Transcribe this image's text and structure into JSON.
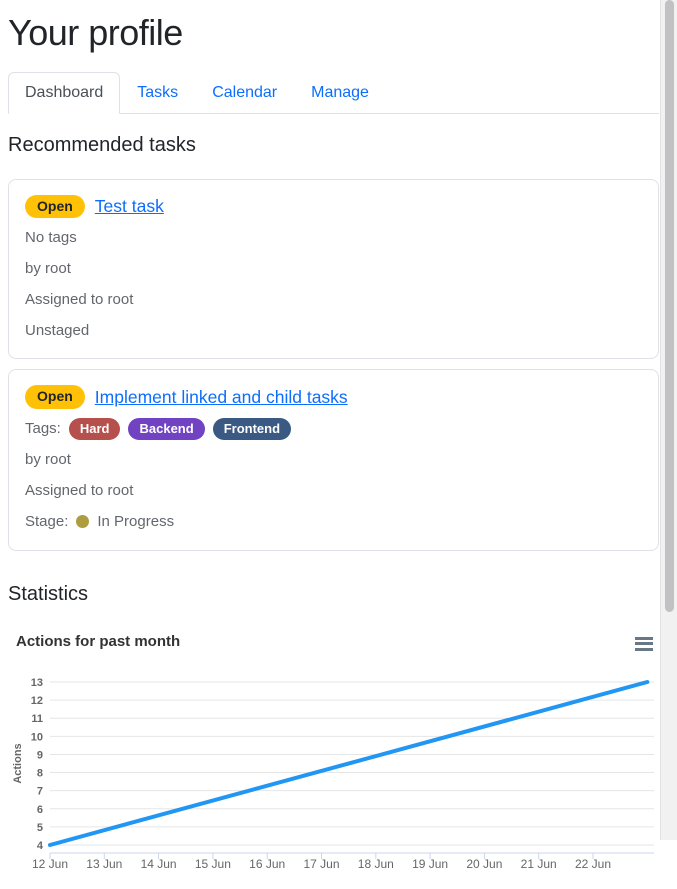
{
  "page": {
    "title": "Your profile"
  },
  "tabs": [
    {
      "label": "Dashboard",
      "active": true
    },
    {
      "label": "Tasks",
      "active": false
    },
    {
      "label": "Calendar",
      "active": false
    },
    {
      "label": "Manage",
      "active": false
    }
  ],
  "recommended": {
    "heading": "Recommended tasks",
    "tasks": [
      {
        "status": "Open",
        "title": "Test task",
        "tags_text": "No tags",
        "author": "by root",
        "assigned": "Assigned to root",
        "stage_text": "Unstaged"
      },
      {
        "status": "Open",
        "title": "Implement linked and child tasks",
        "tags_label": "Tags:",
        "tags": [
          {
            "label": "Hard",
            "color": "#b5504c"
          },
          {
            "label": "Backend",
            "color": "#7142c2"
          },
          {
            "label": "Frontend",
            "color": "#3a5a84"
          }
        ],
        "author": "by root",
        "assigned": "Assigned to root",
        "stage_label": "Stage:",
        "stage_text": "In Progress",
        "stage_dot_color": "#ad9d3e"
      }
    ]
  },
  "statistics": {
    "heading": "Statistics"
  },
  "chart_data": {
    "type": "line",
    "title": "Actions for past month",
    "ylabel": "Actions",
    "xlabel": "",
    "x_tick_labels": [
      "12 Jun",
      "13 Jun",
      "14 Jun",
      "15 Jun",
      "16 Jun",
      "17 Jun",
      "18 Jun",
      "19 Jun",
      "20 Jun",
      "21 Jun",
      "22 Jun"
    ],
    "y_ticks": [
      4,
      5,
      6,
      7,
      8,
      9,
      10,
      11,
      12,
      13
    ],
    "ylim": [
      3.5,
      13
    ],
    "grid": true,
    "legend": "none",
    "series": [
      {
        "name": "Actions",
        "x": [
          "12 Jun",
          "23 Jun"
        ],
        "y": [
          4,
          13
        ]
      }
    ],
    "line_color": "#2196f3",
    "grid_color": "#e6e6e6",
    "axis_color": "#ccd6eb",
    "label_color": "#666666",
    "context_menu_icon": "hamburger-icon"
  },
  "colors": {
    "link": "#0d6efd",
    "badge_open_bg": "#ffc107",
    "muted_text": "#62676d",
    "card_border": "#dee2e6"
  }
}
